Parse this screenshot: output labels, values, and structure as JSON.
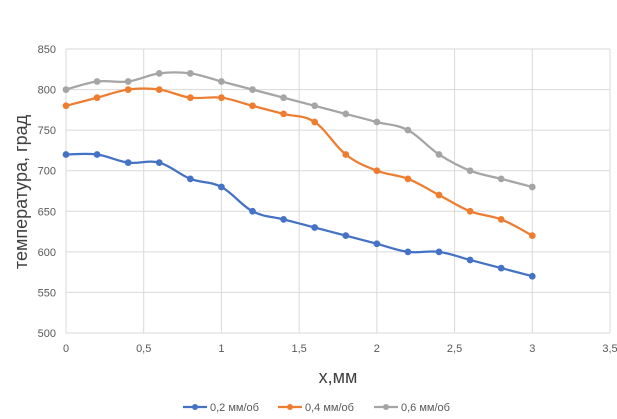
{
  "chart_data": {
    "type": "line",
    "xlabel": "x,мм",
    "ylabel": "температура, град",
    "xlim": [
      0,
      3.5
    ],
    "ylim": [
      500,
      850
    ],
    "x_ticks": [
      "0",
      "0,5",
      "1",
      "1,5",
      "2",
      "2,5",
      "3",
      "3,5"
    ],
    "y_ticks": [
      "500",
      "550",
      "600",
      "650",
      "700",
      "750",
      "800",
      "850"
    ],
    "grid": "horizontal and vertical",
    "legend_position": "bottom",
    "x": [
      0,
      0.2,
      0.4,
      0.6,
      0.8,
      1.0,
      1.2,
      1.4,
      1.6,
      1.8,
      2.0,
      2.2,
      2.4,
      2.6,
      2.8,
      3.0
    ],
    "series": [
      {
        "name": "0,2 мм/об",
        "color": "#4472c4",
        "values": [
          720,
          720,
          710,
          710,
          690,
          680,
          650,
          640,
          630,
          620,
          610,
          600,
          600,
          590,
          580,
          570
        ]
      },
      {
        "name": "0,4 мм/об",
        "color": "#ed7d31",
        "values": [
          780,
          790,
          800,
          800,
          790,
          790,
          780,
          770,
          760,
          720,
          700,
          690,
          670,
          650,
          640,
          620
        ]
      },
      {
        "name": "0,6 мм/об",
        "color": "#a5a5a5",
        "values": [
          800,
          810,
          810,
          820,
          820,
          810,
          800,
          790,
          780,
          770,
          760,
          750,
          720,
          700,
          690,
          680
        ]
      }
    ]
  }
}
